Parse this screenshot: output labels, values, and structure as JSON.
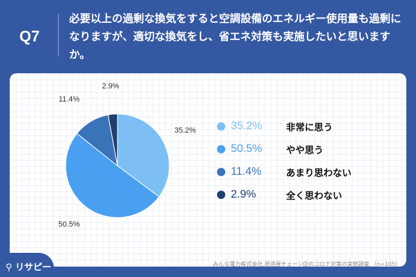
{
  "header": {
    "q": "Q7",
    "question": "必要以上の過剰な換気をすると空調設備のエネルギー使用量も過剰になりますが、適切な換気をし、省エネ対策も実施したいと思いますか。"
  },
  "footer": {
    "logo": "リサピー",
    "source": "みんな電力株式会社,居酒屋チェーン店のコロナ対策の実態調査,（n=105）"
  },
  "chart_data": {
    "type": "pie",
    "categories": [
      "非常に思う",
      "やや思う",
      "あまり思わない",
      "全く思わない"
    ],
    "values": [
      35.2,
      50.5,
      11.4,
      2.9
    ],
    "labels": [
      "35.2%",
      "50.5%",
      "11.4%",
      "2.9%"
    ],
    "colors": [
      "#7dbff5",
      "#4a9ff0",
      "#3b73b8",
      "#1f3f6e"
    ],
    "legend": "right"
  }
}
